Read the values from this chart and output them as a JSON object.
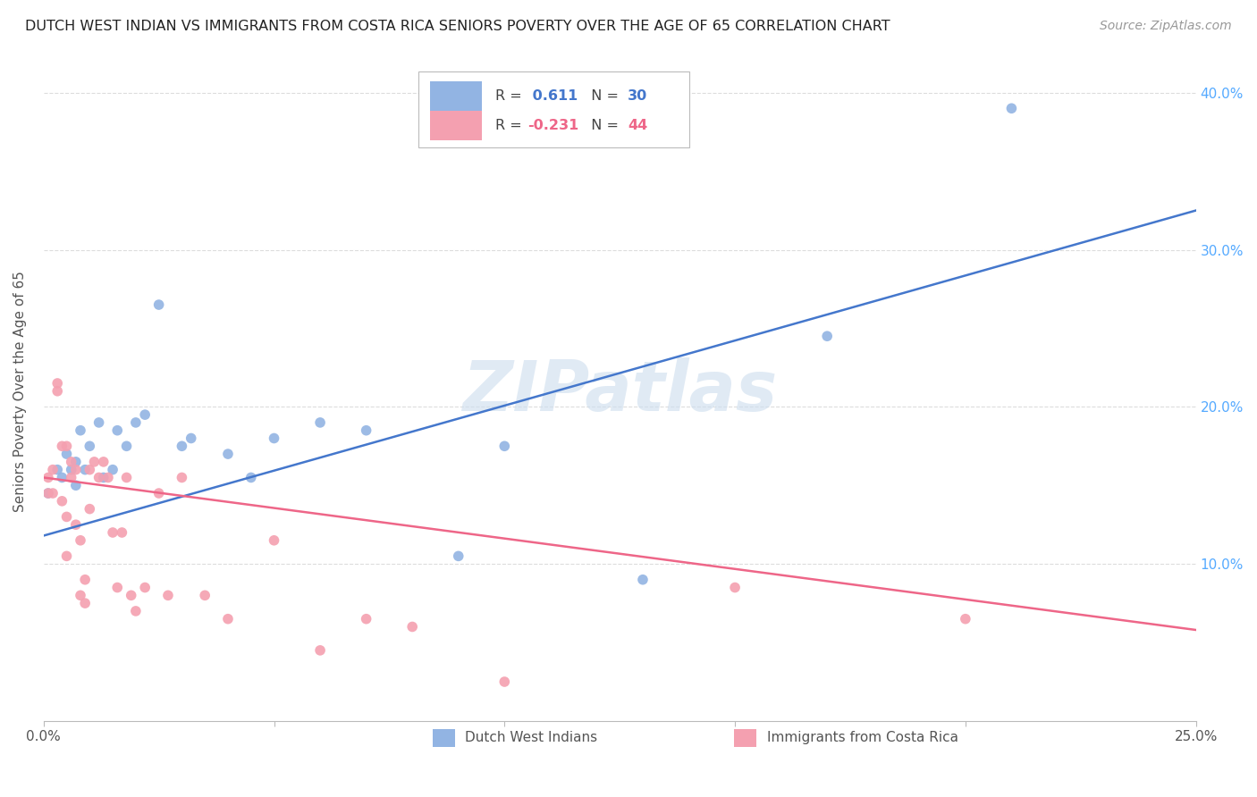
{
  "title": "DUTCH WEST INDIAN VS IMMIGRANTS FROM COSTA RICA SENIORS POVERTY OVER THE AGE OF 65 CORRELATION CHART",
  "source": "Source: ZipAtlas.com",
  "ylabel": "Seniors Poverty Over the Age of 65",
  "xlim": [
    0.0,
    0.25
  ],
  "ylim": [
    0.0,
    0.42
  ],
  "xticks": [
    0.0,
    0.05,
    0.1,
    0.15,
    0.2,
    0.25
  ],
  "yticks": [
    0.1,
    0.2,
    0.3,
    0.4
  ],
  "ytick_labels": [
    "10.0%",
    "20.0%",
    "30.0%",
    "40.0%"
  ],
  "xtick_labels": [
    "0.0%",
    "",
    "",
    "",
    "",
    "25.0%"
  ],
  "blue_R": 0.611,
  "blue_N": 30,
  "pink_R": -0.231,
  "pink_N": 44,
  "blue_color": "#92B4E3",
  "pink_color": "#F4A0B0",
  "blue_line_color": "#4477CC",
  "pink_line_color": "#EE6688",
  "blue_label": "Dutch West Indians",
  "pink_label": "Immigrants from Costa Rica",
  "watermark": "ZIPatlas",
  "blue_scatter_x": [
    0.001,
    0.003,
    0.004,
    0.005,
    0.006,
    0.007,
    0.007,
    0.008,
    0.009,
    0.01,
    0.012,
    0.013,
    0.015,
    0.016,
    0.018,
    0.02,
    0.022,
    0.025,
    0.03,
    0.032,
    0.04,
    0.045,
    0.05,
    0.06,
    0.07,
    0.09,
    0.1,
    0.13,
    0.17,
    0.21
  ],
  "blue_scatter_y": [
    0.145,
    0.16,
    0.155,
    0.17,
    0.16,
    0.165,
    0.15,
    0.185,
    0.16,
    0.175,
    0.19,
    0.155,
    0.16,
    0.185,
    0.175,
    0.19,
    0.195,
    0.265,
    0.175,
    0.18,
    0.17,
    0.155,
    0.18,
    0.19,
    0.185,
    0.105,
    0.175,
    0.09,
    0.245,
    0.39
  ],
  "pink_scatter_x": [
    0.001,
    0.001,
    0.002,
    0.002,
    0.003,
    0.003,
    0.004,
    0.004,
    0.005,
    0.005,
    0.005,
    0.006,
    0.006,
    0.007,
    0.007,
    0.008,
    0.008,
    0.009,
    0.009,
    0.01,
    0.01,
    0.011,
    0.012,
    0.013,
    0.014,
    0.015,
    0.016,
    0.017,
    0.018,
    0.019,
    0.02,
    0.022,
    0.025,
    0.027,
    0.03,
    0.035,
    0.04,
    0.05,
    0.06,
    0.07,
    0.08,
    0.1,
    0.15,
    0.2
  ],
  "pink_scatter_y": [
    0.145,
    0.155,
    0.16,
    0.145,
    0.215,
    0.21,
    0.14,
    0.175,
    0.175,
    0.13,
    0.105,
    0.165,
    0.155,
    0.16,
    0.125,
    0.115,
    0.08,
    0.09,
    0.075,
    0.16,
    0.135,
    0.165,
    0.155,
    0.165,
    0.155,
    0.12,
    0.085,
    0.12,
    0.155,
    0.08,
    0.07,
    0.085,
    0.145,
    0.08,
    0.155,
    0.08,
    0.065,
    0.115,
    0.045,
    0.065,
    0.06,
    0.025,
    0.085,
    0.065
  ],
  "blue_line_x": [
    0.0,
    0.25
  ],
  "blue_line_y": [
    0.118,
    0.325
  ],
  "pink_line_x": [
    0.0,
    0.25
  ],
  "pink_line_y": [
    0.155,
    0.058
  ],
  "background_color": "#FFFFFF",
  "grid_color": "#DDDDDD"
}
